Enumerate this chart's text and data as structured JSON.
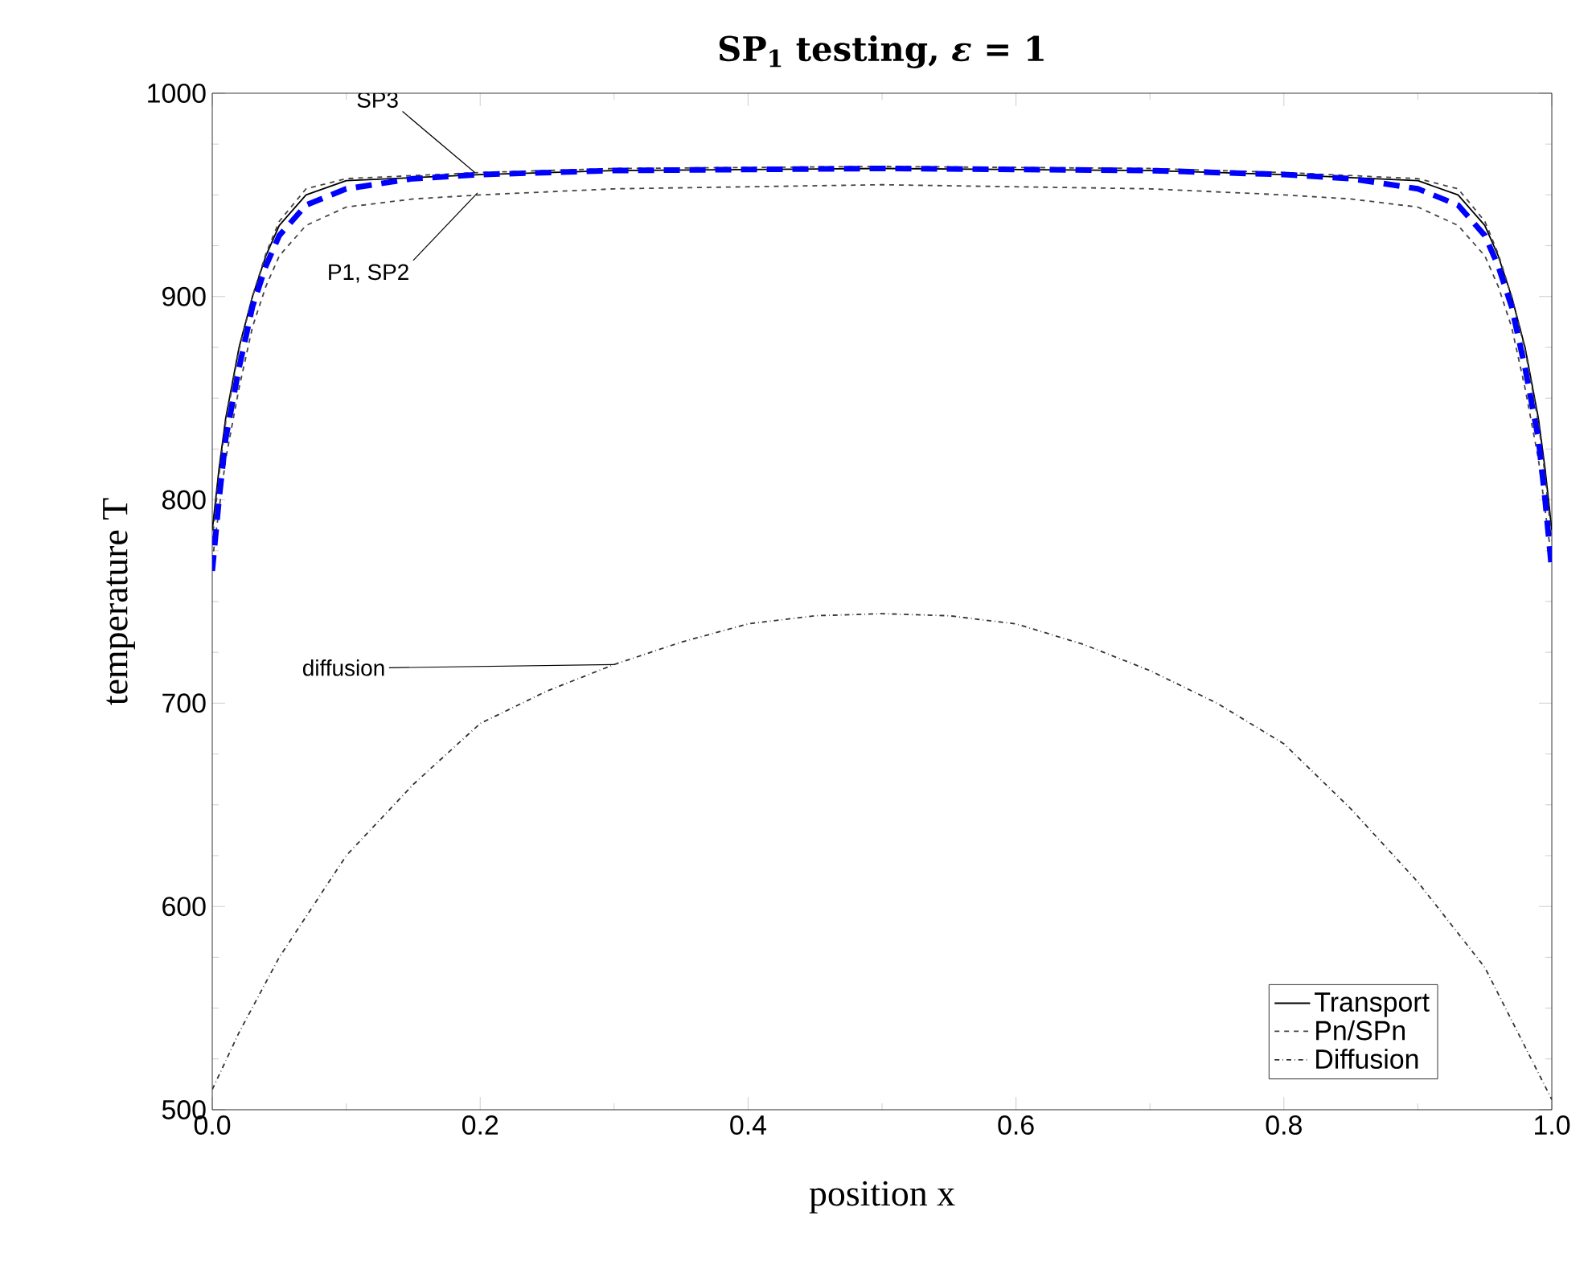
{
  "chart_data": {
    "type": "line",
    "title": "SP$_{1}$ testing,   *ε* = 1",
    "xlabel": "position x",
    "ylabel": "temperature T",
    "xlim": [
      0,
      1
    ],
    "ylim": [
      500,
      1000
    ],
    "xticks": [
      {
        "value": 0,
        "label": "0.0"
      },
      0.2,
      0.4,
      0.6,
      0.8,
      {
        "value": 1,
        "label": "1.0"
      }
    ],
    "yticks": [
      500,
      600,
      700,
      800,
      900,
      1000
    ],
    "grid": false,
    "legend": "bottom right",
    "series": [
      {
        "name": "Transport",
        "color": "#000000",
        "line_style": "solid",
        "x": [
          0,
          0.005,
          0.01,
          0.02,
          0.03,
          0.04,
          0.05,
          0.07,
          0.1,
          0.2,
          0.3,
          0.5,
          0.7,
          0.8,
          0.9,
          0.93,
          0.95,
          0.96,
          0.97,
          0.98,
          0.99,
          0.995,
          1
        ],
        "values": [
          785,
          815,
          840,
          875,
          900,
          920,
          935,
          950,
          957,
          960,
          962,
          963,
          962,
          960,
          957,
          950,
          935,
          920,
          900,
          875,
          840,
          815,
          785
        ]
      },
      {
        "name": "Pn/SPn",
        "color": "#444444",
        "line_style": "dashed",
        "x": [
          0,
          0.005,
          0.01,
          0.02,
          0.03,
          0.04,
          0.05,
          0.07,
          0.1,
          0.2,
          0.3,
          0.5,
          0.7,
          0.8,
          0.9,
          0.93,
          0.95,
          0.96,
          0.97,
          0.98,
          0.99,
          0.995,
          1
        ],
        "values": [
          780,
          812,
          838,
          874,
          900,
          921,
          937,
          953,
          958,
          961,
          963,
          964,
          963,
          961,
          958,
          953,
          937,
          921,
          900,
          874,
          838,
          812,
          780
        ]
      },
      {
        "color": "#444444",
        "line_style": "dashed",
        "x": [
          0,
          0.01,
          0.02,
          0.03,
          0.04,
          0.05,
          0.07,
          0.1,
          0.15,
          0.2,
          0.3,
          0.5,
          0.7,
          0.8,
          0.85,
          0.9,
          0.93,
          0.95,
          0.96,
          0.97,
          0.98,
          0.99,
          1
        ],
        "values": [
          770,
          820,
          855,
          885,
          905,
          920,
          935,
          944,
          948,
          950,
          953,
          955,
          953,
          950,
          948,
          944,
          935,
          920,
          905,
          885,
          855,
          820,
          770
        ]
      },
      {
        "color": "#0000ff",
        "line_style": "dashed",
        "x": [
          0,
          0.005,
          0.01,
          0.02,
          0.03,
          0.04,
          0.05,
          0.07,
          0.1,
          0.15,
          0.2,
          0.3,
          0.5,
          0.7,
          0.8,
          0.85,
          0.9,
          0.93,
          0.95,
          0.96,
          0.97,
          0.98,
          0.99,
          0.995,
          1
        ],
        "values": [
          765,
          800,
          830,
          865,
          895,
          915,
          930,
          945,
          953,
          958,
          960,
          962,
          963,
          962,
          960,
          958,
          953,
          945,
          930,
          915,
          895,
          865,
          830,
          800,
          765
        ]
      },
      {
        "name": "Diffusion",
        "color": "#333333",
        "line_style": "dashdot",
        "x": [
          0,
          0.02,
          0.05,
          0.1,
          0.15,
          0.2,
          0.25,
          0.3,
          0.35,
          0.4,
          0.45,
          0.5,
          0.55,
          0.6,
          0.65,
          0.7,
          0.75,
          0.8,
          0.85,
          0.9,
          0.95,
          1
        ],
        "values": [
          510,
          538,
          575,
          625,
          660,
          690,
          706,
          719,
          730,
          739,
          743,
          744,
          743,
          739,
          729,
          716,
          700,
          680,
          648,
          612,
          570,
          505
        ]
      }
    ],
    "annotations": [
      {
        "text": "SP3",
        "x": 0.196,
        "y": 961
      },
      {
        "text": "P1, SP2",
        "x": 0.198,
        "y": 951
      },
      {
        "text": "diffusion",
        "x": 0.3,
        "y": 719
      }
    ]
  }
}
